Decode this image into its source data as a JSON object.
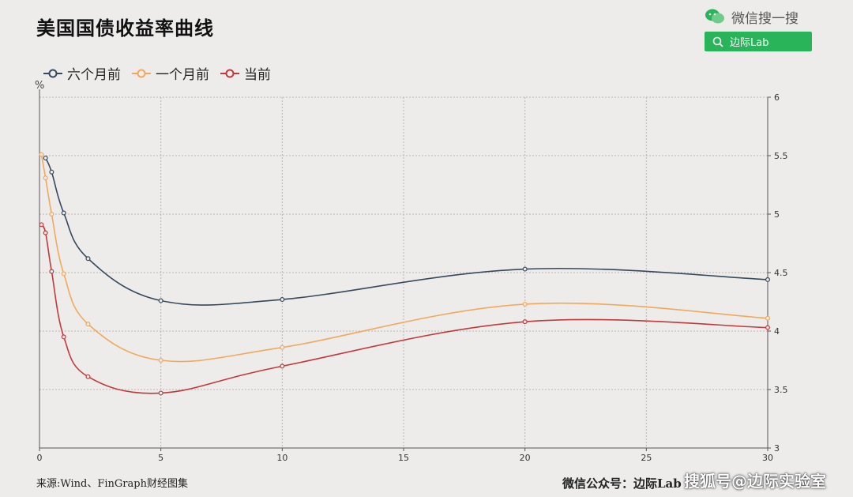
{
  "title": "美国国债收益率曲线",
  "wechat": {
    "brand_label": "微信搜一搜",
    "search_label": "边际Lab"
  },
  "unit_label": "%",
  "footer": {
    "source": "来源:Wind、FinGraph财经图集",
    "account": "微信公众号：边际Lab",
    "watermark": "搜狐号@边际实验室"
  },
  "chart_data": {
    "type": "line",
    "title": "美国国债收益率曲线",
    "xlabel": "",
    "ylabel": "%",
    "xlim": [
      0,
      30
    ],
    "ylim": [
      3,
      6
    ],
    "x_ticks": [
      0,
      5,
      10,
      15,
      20,
      25,
      30
    ],
    "y_ticks": [
      3,
      3.5,
      4,
      4.5,
      5,
      5.5,
      6
    ],
    "grid": true,
    "legend_position": "top-left",
    "y_axis_side": "right",
    "series": [
      {
        "name": "六个月前",
        "color": "#34495e",
        "points": [
          [
            0.25,
            5.48
          ],
          [
            0.5,
            5.36
          ],
          [
            1,
            5.01
          ],
          [
            2,
            4.62
          ],
          [
            5,
            4.26
          ],
          [
            10,
            4.27
          ],
          [
            20,
            4.53
          ],
          [
            30,
            4.44
          ]
        ]
      },
      {
        "name": "一个月前",
        "color": "#f0a95c",
        "points": [
          [
            0.08,
            5.51
          ],
          [
            0.25,
            5.31
          ],
          [
            0.5,
            5.0
          ],
          [
            1,
            4.49
          ],
          [
            2,
            4.06
          ],
          [
            5,
            3.75
          ],
          [
            10,
            3.86
          ],
          [
            20,
            4.23
          ],
          [
            30,
            4.11
          ]
        ]
      },
      {
        "name": "当前",
        "color": "#c0393b",
        "points": [
          [
            0.08,
            4.91
          ],
          [
            0.25,
            4.84
          ],
          [
            0.5,
            4.51
          ],
          [
            1,
            3.95
          ],
          [
            2,
            3.61
          ],
          [
            5,
            3.47
          ],
          [
            10,
            3.7
          ],
          [
            20,
            4.08
          ],
          [
            30,
            4.03
          ]
        ]
      }
    ]
  }
}
